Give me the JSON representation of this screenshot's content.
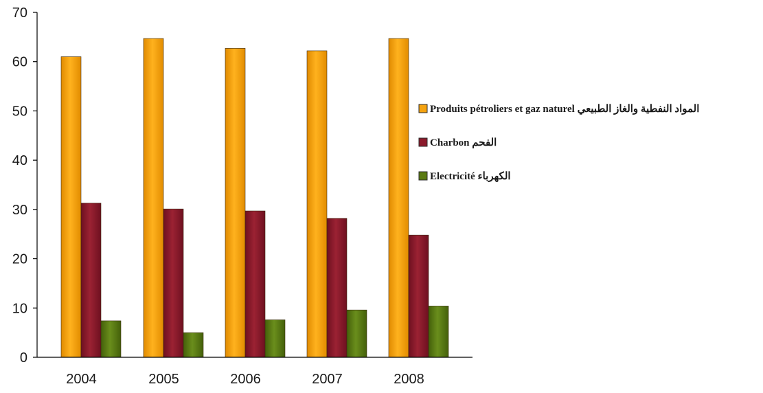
{
  "chart_data": {
    "type": "bar",
    "title": "",
    "xlabel": "",
    "ylabel": "",
    "categories": [
      "2004",
      "2005",
      "2006",
      "2007",
      "2008"
    ],
    "ylim": [
      0,
      70
    ],
    "yticks": [
      0,
      10,
      20,
      30,
      40,
      50,
      60,
      70
    ],
    "grid": false,
    "legend_position": "right",
    "series": [
      {
        "name": "Produits pétroliers et gaz  naturel المواد النفطية والغاز الطبيعي",
        "color": "#F5A310",
        "values": [
          61,
          64.7,
          62.7,
          62.2,
          64.7
        ]
      },
      {
        "name": "Charbon الفحم",
        "color": "#8B1A2B",
        "values": [
          31.3,
          30.1,
          29.7,
          28.2,
          24.8
        ]
      },
      {
        "name": "Electricité الكهرباء",
        "color": "#5A7A12",
        "values": [
          7.4,
          5,
          7.6,
          9.6,
          10.4
        ]
      }
    ]
  }
}
